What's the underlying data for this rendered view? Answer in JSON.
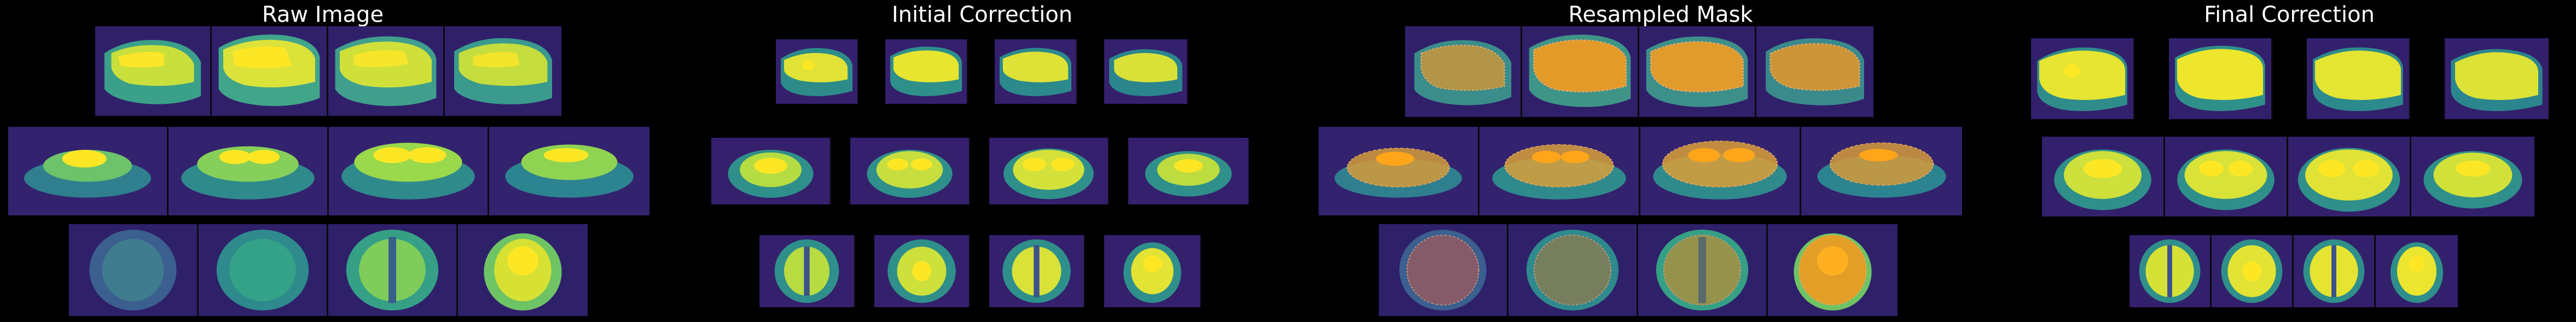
{
  "panels": [
    {
      "id": "raw",
      "title": "Raw Image"
    },
    {
      "id": "initial",
      "title": "Initial Correction"
    },
    {
      "id": "resampled",
      "title": "Resampled Mask"
    },
    {
      "id": "final",
      "title": "Final Correction"
    }
  ],
  "colors": {
    "background": "#000000",
    "title_text": "#ffffff",
    "viridis_low": "#440154",
    "viridis_mid": "#21918c",
    "viridis_high": "#fde725",
    "mask_overlay": "#ff9a1f"
  },
  "layout_rows": [
    "sagittal",
    "coronal",
    "axial"
  ],
  "slices_per_row": 4
}
